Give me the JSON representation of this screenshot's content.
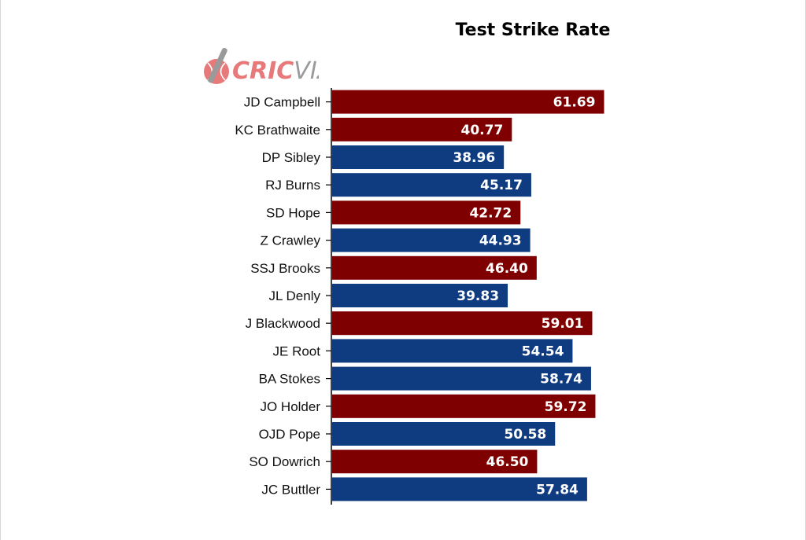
{
  "chart_data": {
    "type": "bar",
    "orientation": "horizontal",
    "title": "Test Strike Rate",
    "categories": [
      "JD Campbell",
      "KC Brathwaite",
      "DP Sibley",
      "RJ Burns",
      "SD Hope",
      "Z Crawley",
      "SSJ Brooks",
      "JL Denly",
      "J Blackwood",
      "JE Root",
      "BA Stokes",
      "JO Holder",
      "OJD Pope",
      "SO Dowrich",
      "JC Buttler"
    ],
    "values": [
      61.69,
      40.77,
      38.96,
      45.17,
      42.72,
      44.93,
      46.4,
      39.83,
      59.01,
      54.54,
      58.74,
      59.72,
      50.58,
      46.5,
      57.84
    ],
    "value_labels": [
      "61.69",
      "40.77",
      "38.96",
      "45.17",
      "42.72",
      "44.93",
      "46.40",
      "39.83",
      "59.01",
      "54.54",
      "58.74",
      "59.72",
      "50.58",
      "46.50",
      "57.84"
    ],
    "bar_colors": [
      "#7f0000",
      "#7f0000",
      "#0f3c80",
      "#0f3c80",
      "#7f0000",
      "#0f3c80",
      "#7f0000",
      "#0f3c80",
      "#7f0000",
      "#0f3c80",
      "#0f3c80",
      "#7f0000",
      "#0f3c80",
      "#7f0000",
      "#0f3c80"
    ],
    "xlim": [
      0,
      64
    ],
    "xlabel": "",
    "ylabel": "",
    "grid": false
  },
  "logo": {
    "text_left": "CRIC",
    "text_right": "VIZ",
    "accent_color": "#e8797b",
    "secondary_color": "#9a9a9a"
  }
}
